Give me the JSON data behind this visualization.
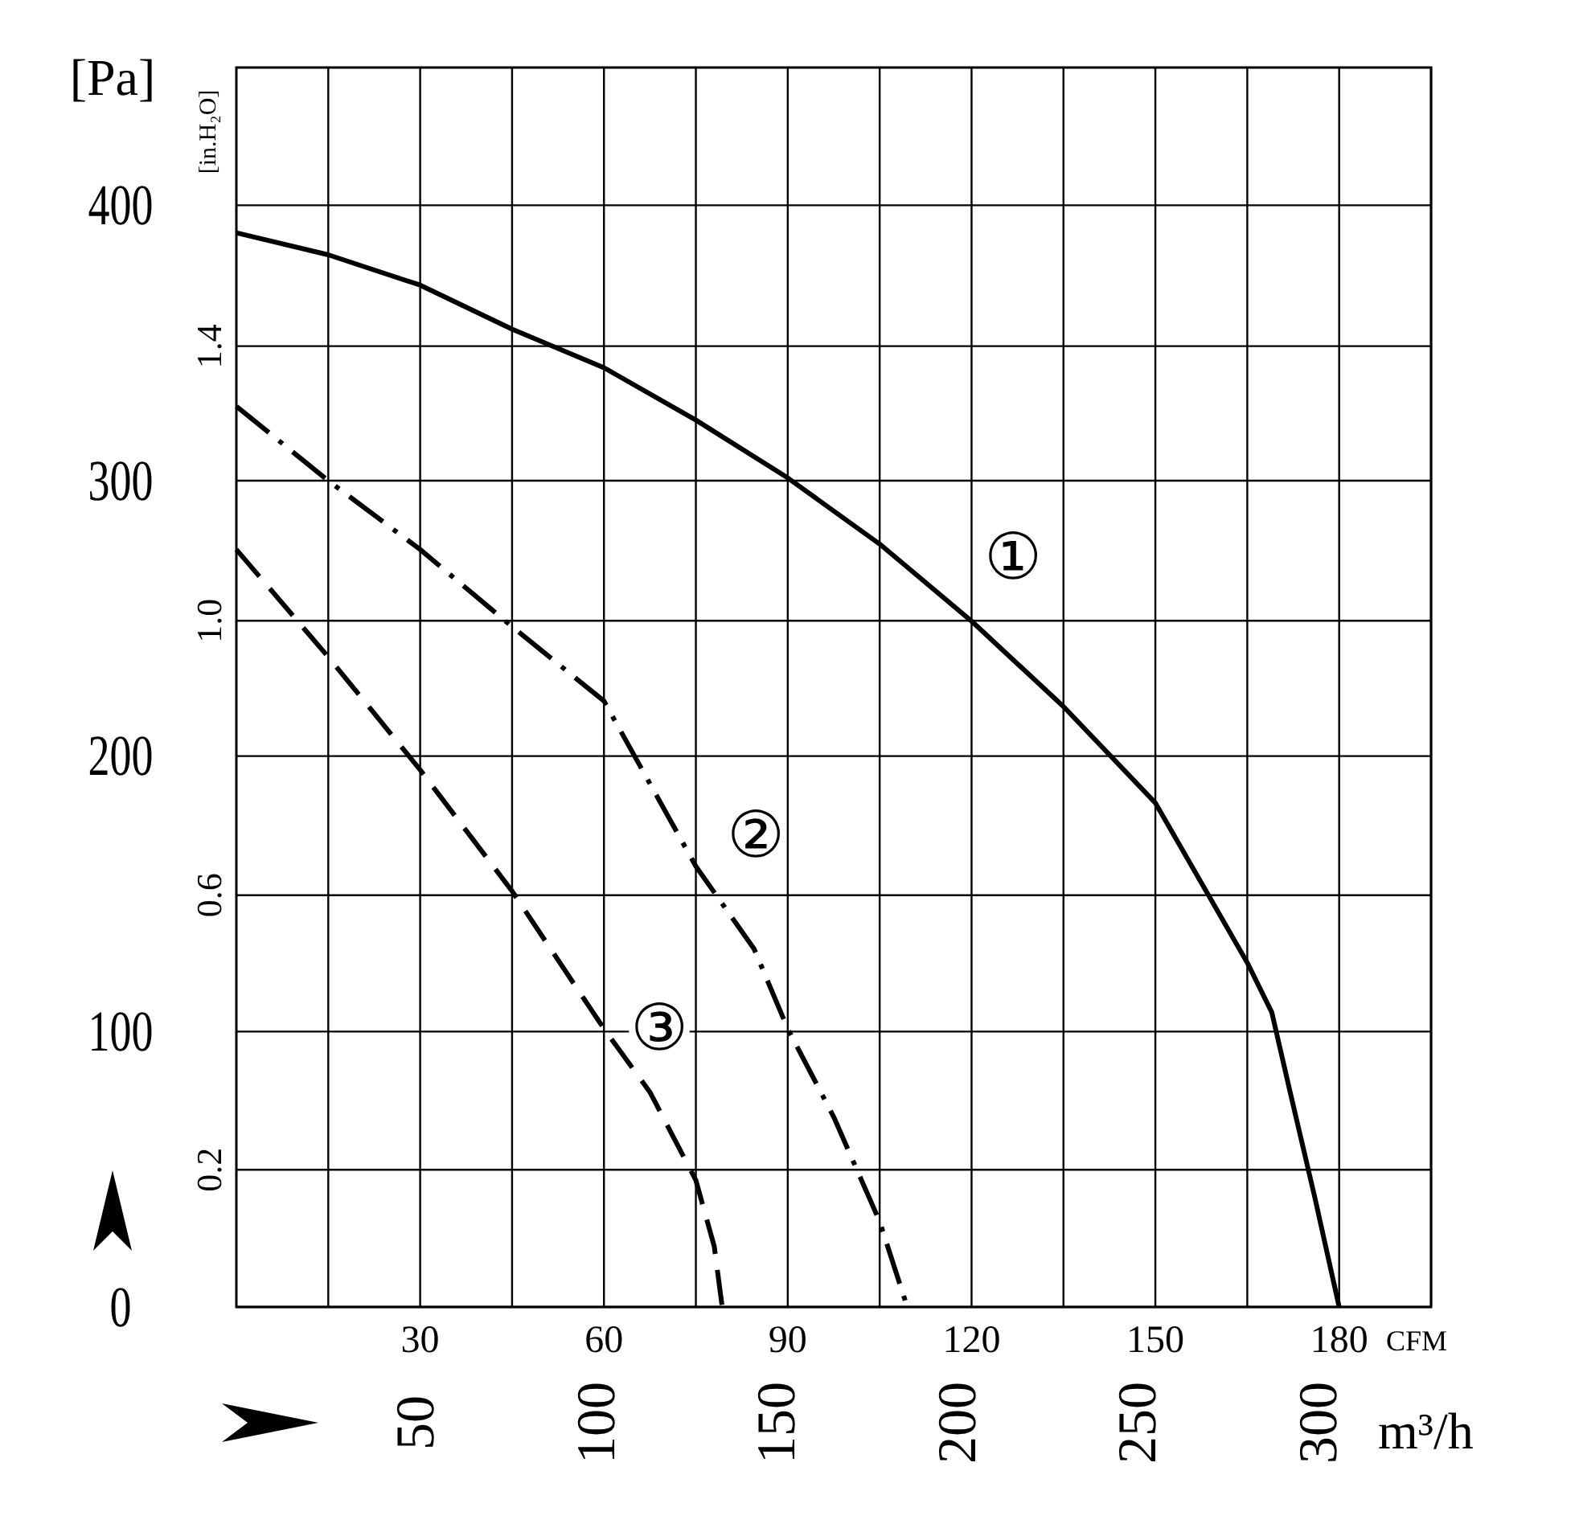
{
  "chart_data": {
    "type": "line",
    "ylabel": "[Pa]",
    "y2label": "[in.H₂O]",
    "xlabel": "CFM",
    "x2label": "m³/h",
    "xlim": [
      0,
      195
    ],
    "xticks": [
      {
        "value": 15,
        "label": null
      },
      30,
      {
        "value": 45,
        "label": null
      },
      60,
      {
        "value": 75,
        "label": null
      },
      90,
      {
        "value": 105,
        "label": null
      },
      120,
      {
        "value": 135,
        "label": null
      },
      150,
      {
        "value": 165,
        "label": null
      },
      180,
      {
        "value": 195,
        "label": null
      }
    ],
    "x2lim": [
      0,
      331
    ],
    "x2ticks": [
      50,
      100,
      150,
      200,
      250,
      300
    ],
    "ylim": [
      0,
      450
    ],
    "yticks": [
      0,
      100,
      200,
      300,
      400
    ],
    "y2lim": [
      0,
      1.806
    ],
    "y2ticks": [
      0.2,
      0.6,
      {
        "value": 1,
        "label": "1.0"
      },
      1.4
    ],
    "grid": true,
    "series": [
      {
        "color": "#000000",
        "line_style": "solid",
        "x": [
          0,
          15,
          30,
          45,
          60,
          75,
          90,
          105,
          120,
          135,
          150,
          157.5,
          165,
          169,
          172,
          176,
          180
        ],
        "values": [
          390,
          382,
          371,
          355,
          341,
          322,
          301,
          277,
          249,
          218,
          183,
          154,
          125,
          107,
          78,
          40,
          0
        ]
      },
      {
        "color": "#000000",
        "line_style": "dashdot",
        "x": [
          0,
          15,
          30,
          45,
          60,
          75,
          84.5,
          90,
          97.5,
          105,
          109.5
        ],
        "values": [
          327,
          300,
          275,
          247,
          220,
          160,
          130,
          101,
          69,
          31,
          0
        ]
      },
      {
        "color": "#000000",
        "line_style": "dashed",
        "x": [
          0,
          15,
          30,
          45,
          60,
          67.5,
          75,
          78,
          79.3
        ],
        "values": [
          275,
          236,
          195,
          151,
          101,
          78,
          46,
          22,
          0
        ]
      }
    ],
    "annotations": [
      "①",
      "②",
      "③"
    ]
  }
}
